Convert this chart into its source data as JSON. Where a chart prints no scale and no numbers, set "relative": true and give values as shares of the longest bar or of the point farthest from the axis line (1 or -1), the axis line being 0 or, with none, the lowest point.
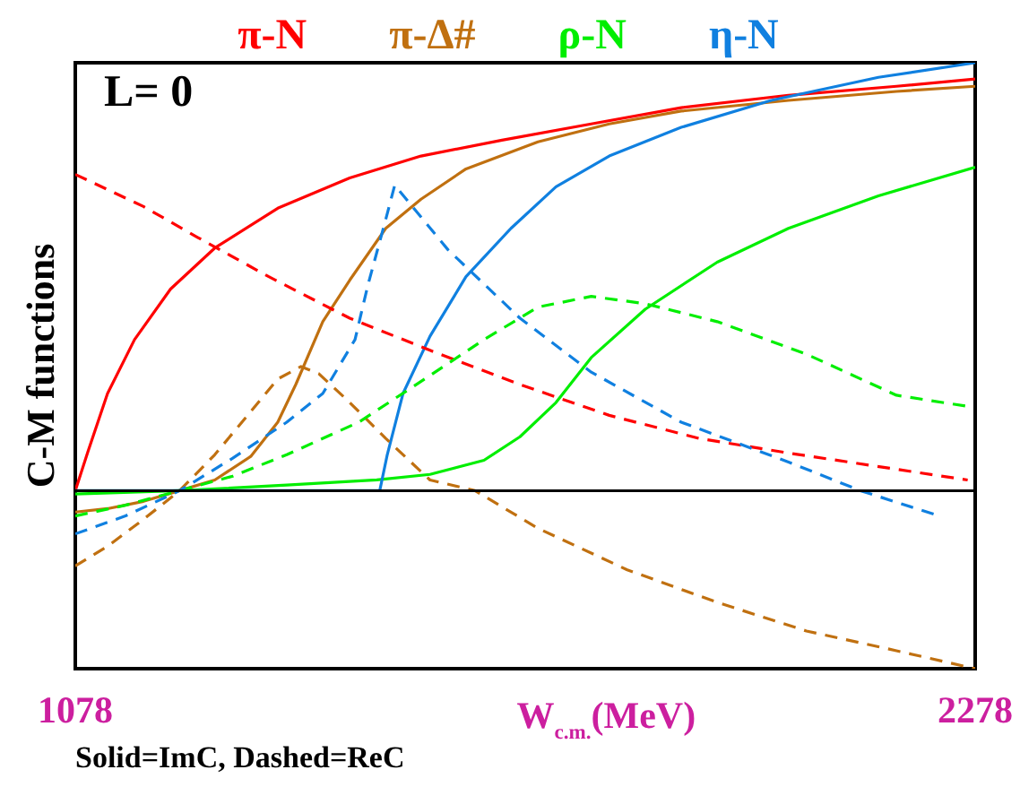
{
  "chart_data": {
    "type": "line",
    "relative": true,
    "ylabel": "C-M functions",
    "xlabel": "W$_{c.m.}$(MeV)",
    "xlim": [
      1078,
      2278
    ],
    "xticks": [
      1078,
      2278
    ],
    "legend": "top",
    "tick_labels": "x",
    "annotations": [
      "L= 0",
      "Solid=ImC, Dashed=ReC"
    ],
    "series": [
      {
        "name": "π-N",
        "color": "#ff0000",
        "line_style": "solid",
        "x": [
          1078,
          1095,
          1121,
          1157,
          1205,
          1264,
          1348,
          1444,
          1539,
          1647,
          1766,
          1886,
          2029,
          2173,
          2278
        ],
        "values": [
          0,
          0.092,
          0.227,
          0.353,
          0.471,
          0.567,
          0.66,
          0.731,
          0.782,
          0.819,
          0.857,
          0.895,
          0.924,
          0.945,
          0.962
        ]
      },
      {
        "name": "π-Δ#",
        "color": "#c07010",
        "line_style": "solid",
        "x": [
          1078,
          1121,
          1169,
          1217,
          1264,
          1312,
          1348,
          1372,
          1408,
          1444,
          1492,
          1539,
          1599,
          1695,
          1790,
          1886,
          2029,
          2173,
          2278
        ],
        "values": [
          -0.05,
          -0.042,
          -0.025,
          0,
          0.025,
          0.08,
          0.16,
          0.248,
          0.395,
          0.492,
          0.613,
          0.681,
          0.752,
          0.815,
          0.857,
          0.887,
          0.912,
          0.933,
          0.945
        ]
      },
      {
        "name": "ρ-N",
        "color": "#00ee00",
        "line_style": "solid",
        "x": [
          1078,
          1217,
          1360,
          1480,
          1551,
          1623,
          1671,
          1719,
          1766,
          1838,
          1934,
          2029,
          2149,
          2278
        ],
        "values": [
          -0.008,
          0,
          0.013,
          0.025,
          0.038,
          0.071,
          0.126,
          0.206,
          0.311,
          0.424,
          0.534,
          0.613,
          0.689,
          0.756
        ]
      },
      {
        "name": "η-N",
        "color": "#1080e0",
        "line_style": "solid",
        "x": [
          1078,
          1484,
          1494,
          1515,
          1551,
          1599,
          1659,
          1719,
          1790,
          1886,
          2006,
          2149,
          2278
        ],
        "values": [
          0,
          0,
          0.084,
          0.227,
          0.361,
          0.5,
          0.613,
          0.71,
          0.782,
          0.849,
          0.912,
          0.966,
          1.0
        ]
      },
      {
        "color": "#ff0000",
        "line_style": "dashed",
        "x": [
          1078,
          1169,
          1241,
          1336,
          1444,
          1551,
          1671,
          1790,
          1910,
          2029,
          2173,
          2268
        ],
        "values": [
          0.739,
          0.664,
          0.592,
          0.5,
          0.403,
          0.328,
          0.248,
          0.176,
          0.122,
          0.088,
          0.05,
          0.025
        ]
      },
      {
        "color": "#c07010",
        "line_style": "dashed",
        "x": [
          1078,
          1121,
          1169,
          1217,
          1264,
          1312,
          1348,
          1379,
          1403,
          1444,
          1492,
          1551,
          1611,
          1695,
          1814,
          1934,
          2053,
          2173,
          2278
        ],
        "values": [
          -0.176,
          -0.13,
          -0.067,
          0,
          0.084,
          0.185,
          0.261,
          0.29,
          0.273,
          0.206,
          0.122,
          0.025,
          0,
          -0.088,
          -0.185,
          -0.261,
          -0.328,
          -0.374,
          -0.416
        ]
      },
      {
        "color": "#00ee00",
        "line_style": "dashed",
        "x": [
          1078,
          1145,
          1217,
          1288,
          1360,
          1456,
          1551,
          1623,
          1695,
          1766,
          1838,
          1934,
          2053,
          2173,
          2268
        ],
        "values": [
          -0.059,
          -0.034,
          0,
          0.034,
          0.084,
          0.16,
          0.269,
          0.353,
          0.429,
          0.454,
          0.437,
          0.395,
          0.319,
          0.223,
          0.197
        ]
      },
      {
        "color": "#1080e0",
        "line_style": "dashed",
        "x": [
          1078,
          1145,
          1217,
          1288,
          1360,
          1408,
          1451,
          1468,
          1492,
          1504,
          1575,
          1671,
          1766,
          1886,
          2029,
          2125,
          2230
        ],
        "values": [
          -0.101,
          -0.059,
          0,
          0.076,
          0.16,
          0.227,
          0.353,
          0.479,
          0.634,
          0.714,
          0.563,
          0.403,
          0.277,
          0.16,
          0.067,
          0,
          -0.059
        ]
      }
    ]
  }
}
